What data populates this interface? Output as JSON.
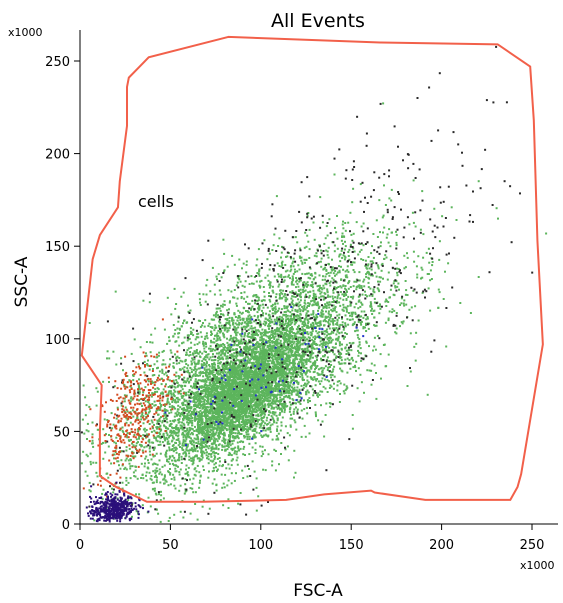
{
  "chart_data": {
    "type": "scatter",
    "title": "All Events",
    "xlabel": "FSC-A",
    "ylabel": "SSC-A",
    "x_multiplier_label": "x1000",
    "y_multiplier_label": "x1000",
    "xlim": [
      0,
      262
    ],
    "ylim": [
      0,
      262
    ],
    "xticks": [
      0,
      50,
      100,
      150,
      200,
      250
    ],
    "yticks": [
      0,
      50,
      100,
      150,
      200,
      250
    ],
    "grid": false,
    "gate": {
      "name": "cells",
      "label_position_data": [
        40,
        176
      ],
      "stroke_color": "#f2604a",
      "polygon": [
        [
          82,
          263
        ],
        [
          38,
          252
        ],
        [
          33,
          247
        ],
        [
          27,
          241
        ],
        [
          26,
          236
        ],
        [
          26,
          215
        ],
        [
          22,
          185
        ],
        [
          21,
          171
        ],
        [
          11,
          156
        ],
        [
          7,
          143
        ],
        [
          1,
          91
        ],
        [
          12,
          75
        ],
        [
          11,
          50
        ],
        [
          11,
          26
        ],
        [
          20,
          20
        ],
        [
          37,
          12
        ],
        [
          68,
          12
        ],
        [
          114,
          13
        ],
        [
          135,
          16
        ],
        [
          161,
          18
        ],
        [
          163,
          17
        ],
        [
          191,
          13
        ],
        [
          238,
          13
        ],
        [
          242,
          20
        ],
        [
          244,
          27
        ],
        [
          256,
          97
        ],
        [
          253,
          153
        ],
        [
          251,
          218
        ],
        [
          249,
          247
        ],
        [
          231,
          259
        ],
        [
          166,
          260
        ],
        [
          82,
          263
        ]
      ]
    },
    "series": [
      {
        "name": "",
        "color": "#5cb55c",
        "center": [
          95,
          85
        ],
        "spread": [
          38,
          32
        ],
        "corr": 0.68,
        "count": 5200,
        "dense_center": [
          90,
          70
        ],
        "dense_spread": [
          18,
          16
        ],
        "dense_count": 3000
      },
      {
        "name": "",
        "color": "#2a2a2a",
        "center": [
          120,
          110
        ],
        "spread": [
          55,
          52
        ],
        "corr": 0.72,
        "count": 560
      },
      {
        "name": "",
        "color": "#d24a1e",
        "center": [
          30,
          60
        ],
        "spread": [
          10,
          16
        ],
        "corr": 0.5,
        "count": 320
      },
      {
        "name": "",
        "color": "#2b0f7a",
        "center": [
          18,
          8
        ],
        "spread": [
          6,
          4
        ],
        "corr": 0.2,
        "count": 480
      },
      {
        "name": "",
        "color": "#2233cc",
        "center": [
          100,
          80
        ],
        "spread": [
          22,
          20
        ],
        "corr": 0.6,
        "count": 70
      }
    ]
  }
}
